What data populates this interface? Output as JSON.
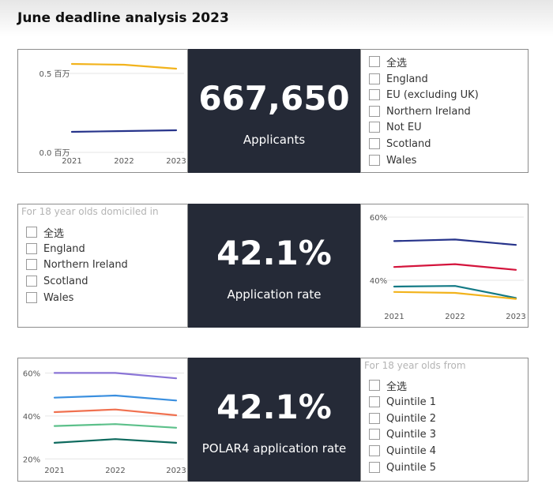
{
  "page": {
    "title": "June deadline analysis 2023"
  },
  "panels": [
    {
      "kpi": {
        "value": "667,650",
        "label": "Applicants"
      },
      "slicer": {
        "header": "",
        "items": [
          "全选",
          "England",
          "EU (excluding UK)",
          "Northern Ireland",
          "Not EU",
          "Scotland",
          "Wales"
        ]
      }
    },
    {
      "kpi": {
        "value": "42.1%",
        "label": "Application rate"
      },
      "slicer": {
        "header": "For 18 year olds domiciled in",
        "items": [
          "全选",
          "England",
          "Northern Ireland",
          "Scotland",
          "Wales"
        ]
      }
    },
    {
      "kpi": {
        "value": "42.1%",
        "label": "POLAR4 application rate"
      },
      "slicer": {
        "header": "For 18 year olds from",
        "items": [
          "全选",
          "Quintile 1",
          "Quintile 2",
          "Quintile 3",
          "Quintile 4",
          "Quintile 5"
        ]
      }
    }
  ],
  "chart_data": [
    {
      "type": "line",
      "x": [
        "2021",
        "2022",
        "2023"
      ],
      "ylim": [
        0,
        0.55
      ],
      "yticks": [
        {
          "value": 0,
          "label": "0.0 百万"
        },
        {
          "value": 0.5,
          "label": "0.5 百万"
        }
      ],
      "series": [
        {
          "values": [
            0.56,
            0.555,
            0.53
          ],
          "color": "#f2b31c"
        },
        {
          "values": [
            0.13,
            0.135,
            0.14
          ],
          "color": "#27348b"
        }
      ]
    },
    {
      "type": "line",
      "x": [
        "2021",
        "2022",
        "2023"
      ],
      "ylim": [
        33,
        61
      ],
      "yticks": [
        {
          "value": 40,
          "label": "40%"
        },
        {
          "value": 60,
          "label": "60%"
        }
      ],
      "series": [
        {
          "values": [
            52.4,
            52.9,
            51.2
          ],
          "color": "#27348b"
        },
        {
          "values": [
            44.2,
            45.1,
            43.3
          ],
          "color": "#d4143c"
        },
        {
          "values": [
            38.0,
            38.2,
            34.4
          ],
          "color": "#137a85"
        },
        {
          "values": [
            36.3,
            36.0,
            34.1
          ],
          "color": "#f2b31c"
        }
      ]
    },
    {
      "type": "line",
      "x": [
        "2021",
        "2022",
        "2023"
      ],
      "ylim": [
        19,
        62
      ],
      "yticks": [
        {
          "value": 20,
          "label": "20%"
        },
        {
          "value": 40,
          "label": "40%"
        },
        {
          "value": 60,
          "label": "60%"
        }
      ],
      "series": [
        {
          "values": [
            60,
            60,
            57.5
          ],
          "color": "#8a74d6"
        },
        {
          "values": [
            48.5,
            49.5,
            47.2
          ],
          "color": "#3a8fdf"
        },
        {
          "values": [
            41.8,
            43.0,
            40.3
          ],
          "color": "#f07150"
        },
        {
          "values": [
            35.3,
            36.2,
            34.5
          ],
          "color": "#5cc08a"
        },
        {
          "values": [
            27.5,
            29.2,
            27.5
          ],
          "color": "#0e6a5e"
        }
      ]
    }
  ]
}
